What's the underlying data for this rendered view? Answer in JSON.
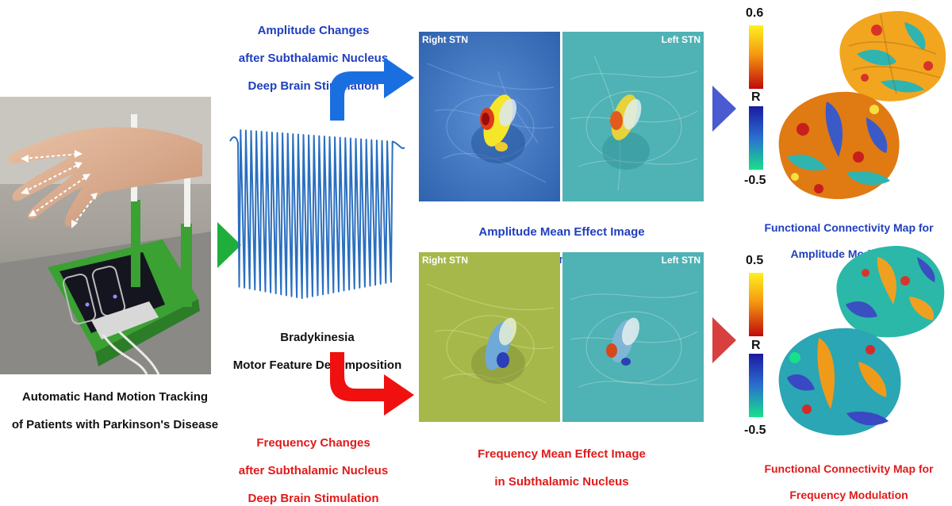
{
  "left_panel": {
    "caption_line1": "Automatic Hand Motion Tracking",
    "caption_line2": "of Patients with Parkinson's Disease"
  },
  "decomposition": {
    "caption_line1": "Bradykinesia",
    "caption_line2": "Motor Feature Decomposition",
    "trace_color": "#2a6fc0"
  },
  "amplitude": {
    "heading_line1": "Amplitude Changes",
    "heading_line2": "after Subthalamic Nucleus",
    "heading_line3": "Deep Brain Stimulation",
    "stn_right_label": "Right STN",
    "stn_left_label": "Left STN",
    "mean_effect_line1": "Amplitude Mean Effect Image",
    "mean_effect_line2": "in Subthalamic Nucleus",
    "colorbar_max": "0.6",
    "colorbar_mid": "R",
    "colorbar_min": "-0.5",
    "connectivity_line1": "Functional Connectivity Map for",
    "connectivity_line2": "Amplitude Modulation",
    "arrow_color": "#1a6fe0",
    "pointer_color": "#4a5ad0"
  },
  "frequency": {
    "heading_line1": "Frequency Changes",
    "heading_line2": "after Subthalamic Nucleus",
    "heading_line3": "Deep Brain Stimulation",
    "stn_right_label": "Right STN",
    "stn_left_label": "Left STN",
    "mean_effect_line1": "Frequency Mean Effect Image",
    "mean_effect_line2": "in Subthalamic Nucleus",
    "colorbar_max": "0.5",
    "colorbar_mid": "R",
    "colorbar_min": "-0.5",
    "connectivity_line1": "Functional Connectivity Map for",
    "connectivity_line2": "Frequency Modulation",
    "arrow_color": "#f01010",
    "pointer_color": "#d84040"
  },
  "flow_pointer_color": "#1fae3c"
}
